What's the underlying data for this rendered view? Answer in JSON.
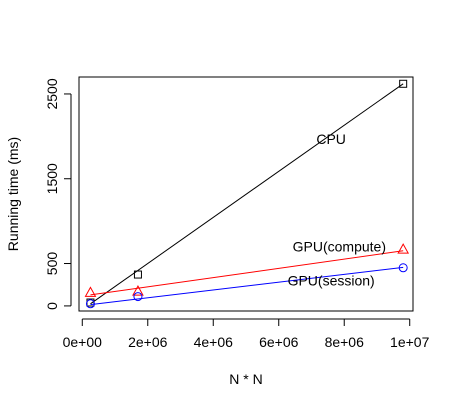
{
  "chart_data": {
    "type": "scatter",
    "xlabel": "N * N",
    "ylabel": "Running time (ms)",
    "xlim": [
      -100000,
      10100000
    ],
    "ylim": [
      -60,
      2700
    ],
    "x_ticks": [
      0,
      2000000,
      4000000,
      6000000,
      8000000,
      10000000
    ],
    "x_tick_labels": [
      "0e+00",
      "2e+06",
      "4e+06",
      "6e+06",
      "8e+06",
      "1e+07"
    ],
    "y_ticks": [
      0,
      500,
      1500,
      2500
    ],
    "y_tick_labels": [
      "0",
      "500",
      "1500",
      "2500"
    ],
    "grid": false,
    "legend": "none",
    "series": [
      {
        "name": "CPU",
        "color": "#000000",
        "marker": "square",
        "points": [
          {
            "x": 250000,
            "y": 40
          },
          {
            "x": 1700000,
            "y": 370
          },
          {
            "x": 9800000,
            "y": 2620
          }
        ],
        "fit": {
          "x0": 250000,
          "y0": 25,
          "x1": 9800000,
          "y1": 2620
        },
        "label": {
          "text": "CPU",
          "x": 7600000,
          "y": 1970
        }
      },
      {
        "name": "GPU(compute)",
        "color": "#ff0000",
        "marker": "triangle",
        "points": [
          {
            "x": 250000,
            "y": 160
          },
          {
            "x": 1700000,
            "y": 175
          },
          {
            "x": 9800000,
            "y": 670
          }
        ],
        "fit": {
          "x0": 250000,
          "y0": 130,
          "x1": 9800000,
          "y1": 650
        },
        "label": {
          "text": "GPU(compute)",
          "x": 7850000,
          "y": 700
        }
      },
      {
        "name": "GPU(session)",
        "color": "#0000ff",
        "marker": "circle",
        "points": [
          {
            "x": 250000,
            "y": 25
          },
          {
            "x": 1700000,
            "y": 110
          },
          {
            "x": 9800000,
            "y": 450
          }
        ],
        "fit": {
          "x0": 250000,
          "y0": 15,
          "x1": 9800000,
          "y1": 455
        },
        "label": {
          "text": "GPU(session)",
          "x": 7600000,
          "y": 300
        }
      }
    ]
  }
}
